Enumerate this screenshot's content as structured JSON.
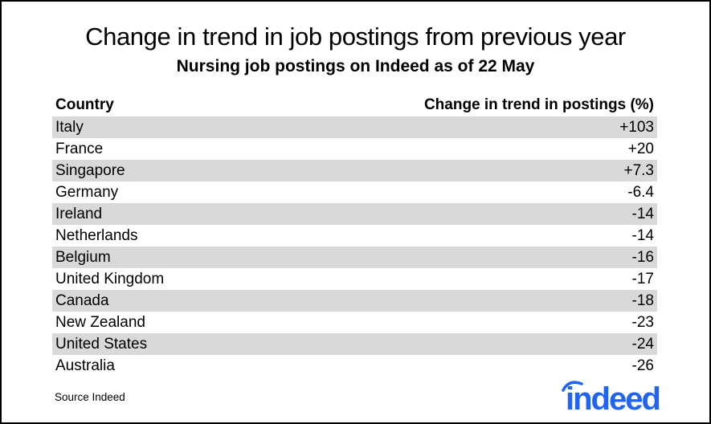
{
  "header": {
    "title": "Change in trend in job postings from previous year",
    "subtitle": "Nursing job postings on Indeed as of 22 May"
  },
  "footer": {
    "source": "Source Indeed",
    "logo_text": "indeed"
  },
  "colors": {
    "row_stripe": "#d9d9d9",
    "logo_blue": "#2164f3",
    "text": "#000000"
  },
  "chart_data": {
    "type": "table",
    "title": "Change in trend in job postings from previous year",
    "subtitle": "Nursing job postings on Indeed as of 22 May",
    "columns": [
      "Country",
      "Change in trend in postings (%)"
    ],
    "rows": [
      {
        "country": "Italy",
        "change": "+103",
        "value": 103
      },
      {
        "country": "France",
        "change": "+20",
        "value": 20
      },
      {
        "country": "Singapore",
        "change": "+7.3",
        "value": 7.3
      },
      {
        "country": "Germany",
        "change": "-6.4",
        "value": -6.4
      },
      {
        "country": "Ireland",
        "change": "-14",
        "value": -14
      },
      {
        "country": "Netherlands",
        "change": "-14",
        "value": -14
      },
      {
        "country": "Belgium",
        "change": "-16",
        "value": -16
      },
      {
        "country": "United Kingdom",
        "change": "-17",
        "value": -17
      },
      {
        "country": "Canada",
        "change": "-18",
        "value": -18
      },
      {
        "country": "New Zealand",
        "change": "-23",
        "value": -23
      },
      {
        "country": "United States",
        "change": "-24",
        "value": -24
      },
      {
        "country": "Australia",
        "change": "-26",
        "value": -26
      }
    ],
    "zebra_striping": "odd rows shaded gray starting with first data row",
    "source": "Source Indeed"
  }
}
